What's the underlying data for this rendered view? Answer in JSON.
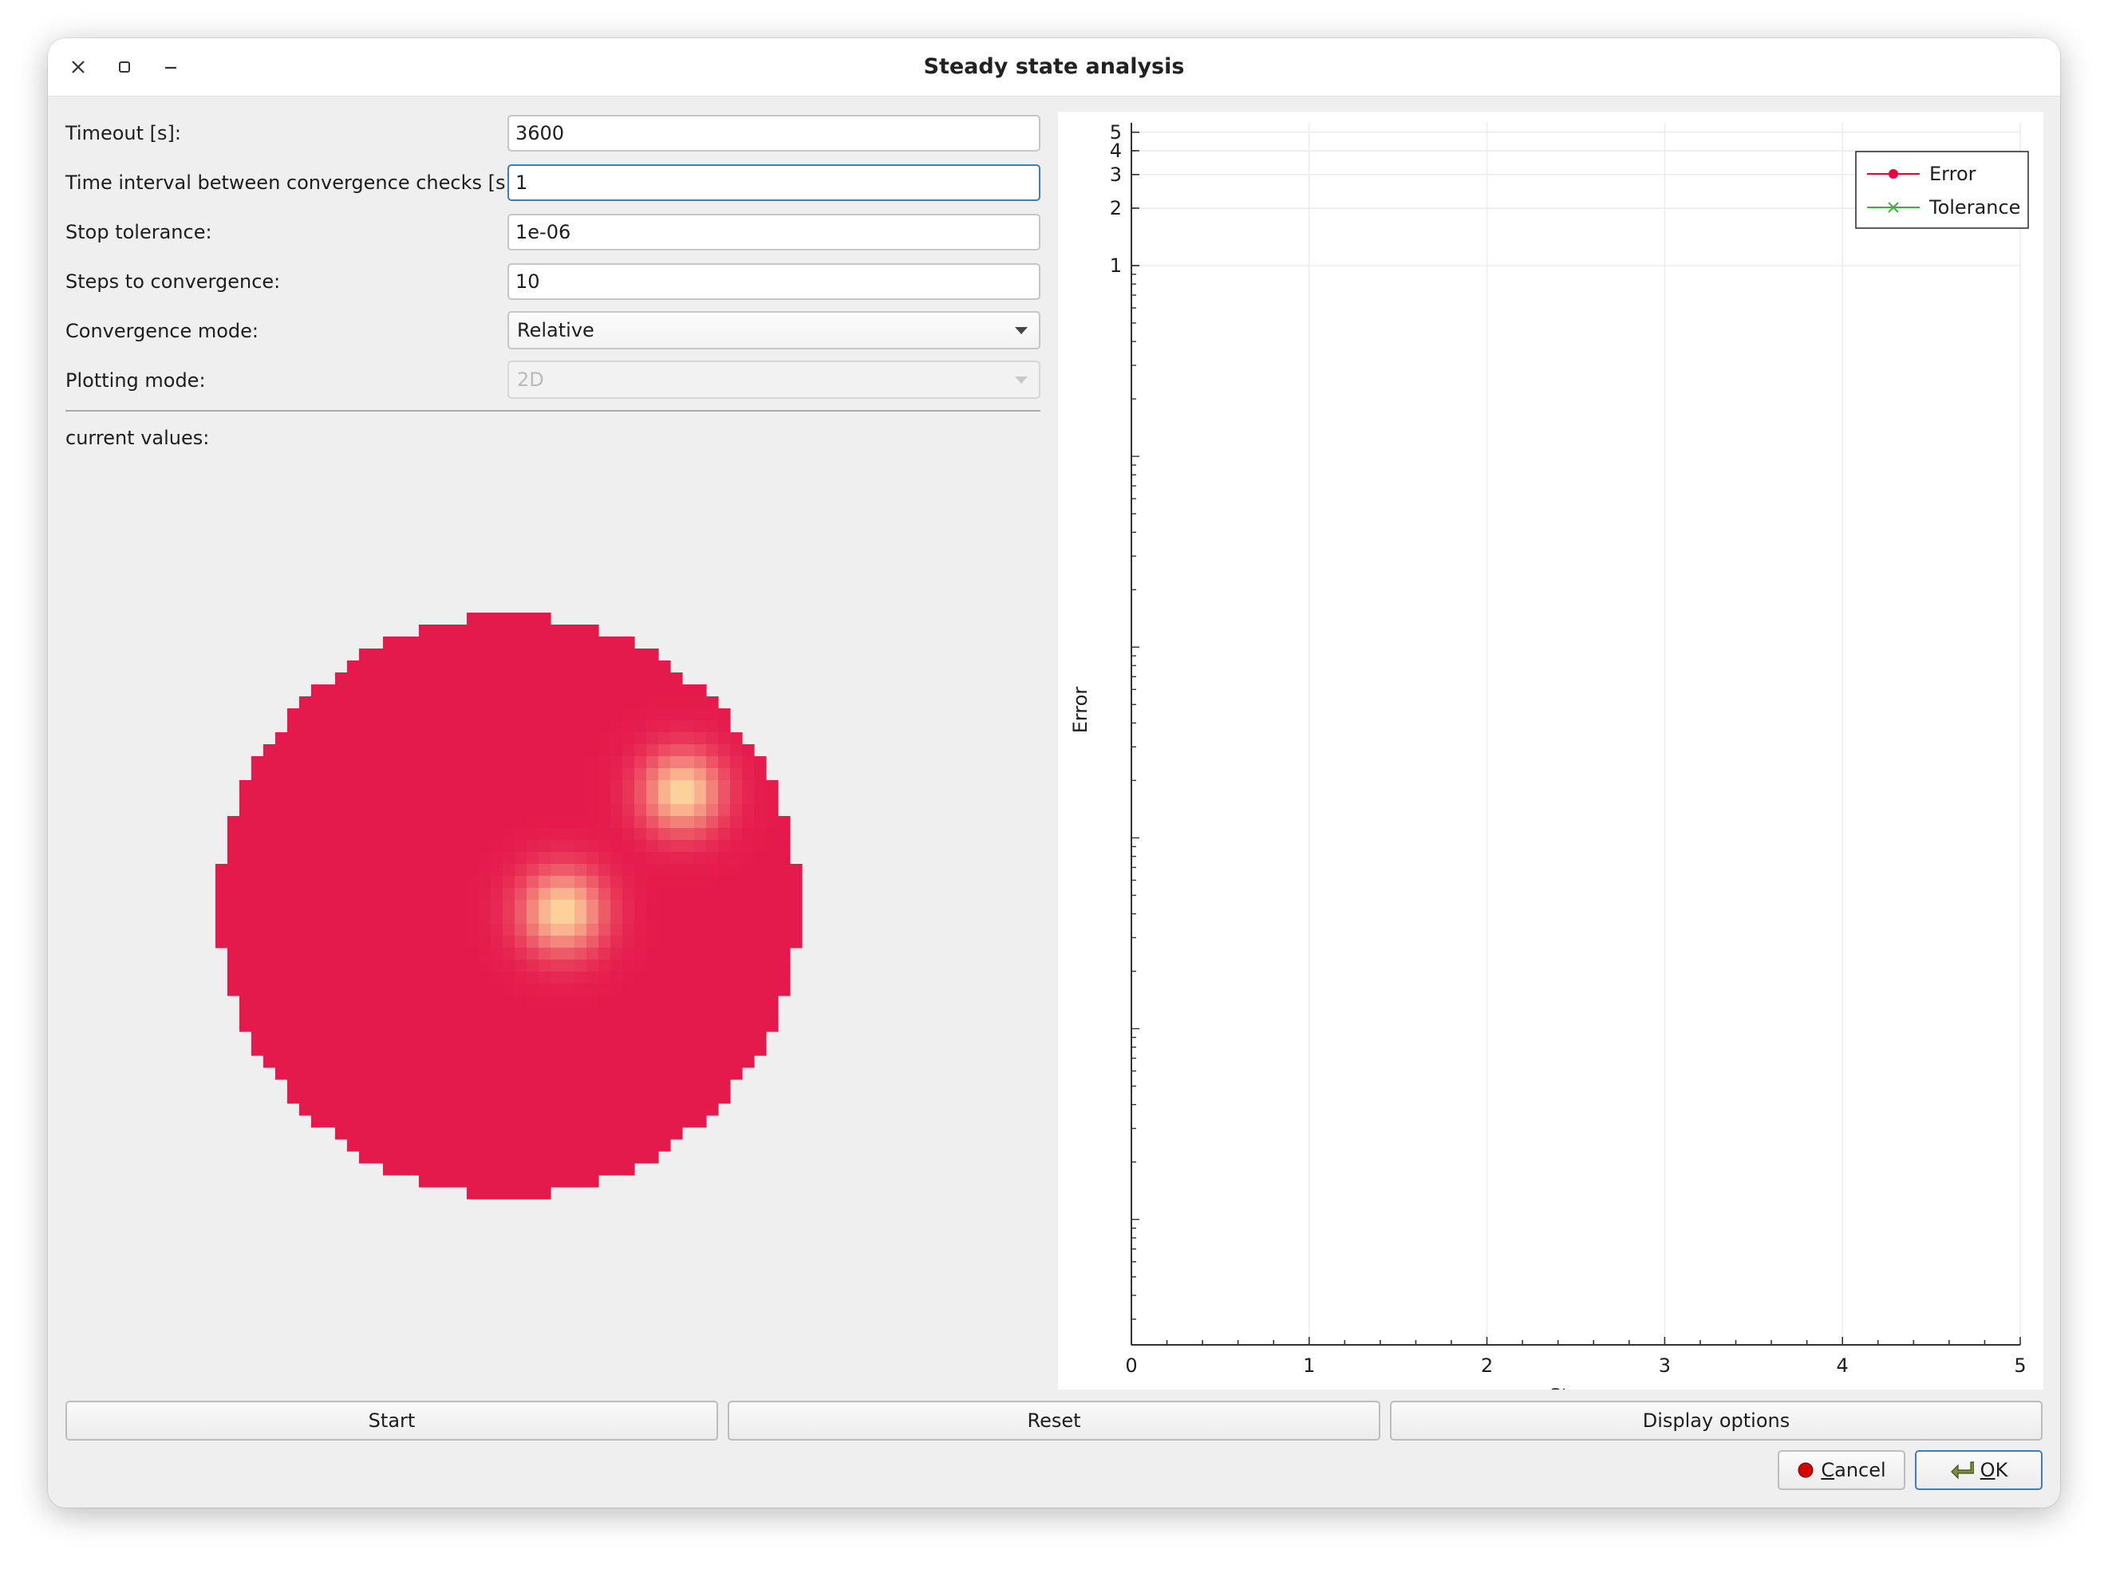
{
  "window": {
    "title": "Steady state analysis",
    "controls": [
      "close-icon",
      "maximize-icon",
      "minimize-icon"
    ]
  },
  "form": {
    "timeout": {
      "label": "Timeout [s]:",
      "value": "3600"
    },
    "interval": {
      "label": "Time interval between convergence checks [s]:",
      "value": "1"
    },
    "stop_tolerance": {
      "label": "Stop tolerance:",
      "value": "1e-06"
    },
    "steps": {
      "label": "Steps to convergence:",
      "value": "10"
    },
    "convergence_mode": {
      "label": "Convergence mode:",
      "value": "Relative"
    },
    "plotting_mode": {
      "label": "Plotting mode:",
      "value": "2D",
      "disabled": true
    }
  },
  "current_values_label": "current values:",
  "chart_data": {
    "type": "line",
    "xlabel": "Steps",
    "ylabel": "Error",
    "xlim": [
      0,
      5
    ],
    "x_ticks": [
      "0",
      "1",
      "2",
      "3",
      "4",
      "5"
    ],
    "ylim_scale": "log",
    "y_ticks": [
      "1",
      "2",
      "3",
      "4",
      "5"
    ],
    "grid": true,
    "legend_position": "top-right",
    "series": [
      {
        "name": "Error",
        "values": [],
        "color": "#e8003d",
        "marker": "dot"
      },
      {
        "name": "Tolerance",
        "values": [],
        "color": "#3caf3c",
        "marker": "x"
      }
    ]
  },
  "buttons": {
    "start": "Start",
    "reset": "Reset",
    "display_options": "Display options",
    "cancel": "Cancel",
    "ok": "OK"
  },
  "colors": {
    "disk": "#e51a4c",
    "hotspot": "#ffd9a0",
    "focus": "#3d7fae",
    "cancel_icon": "#d40000"
  }
}
